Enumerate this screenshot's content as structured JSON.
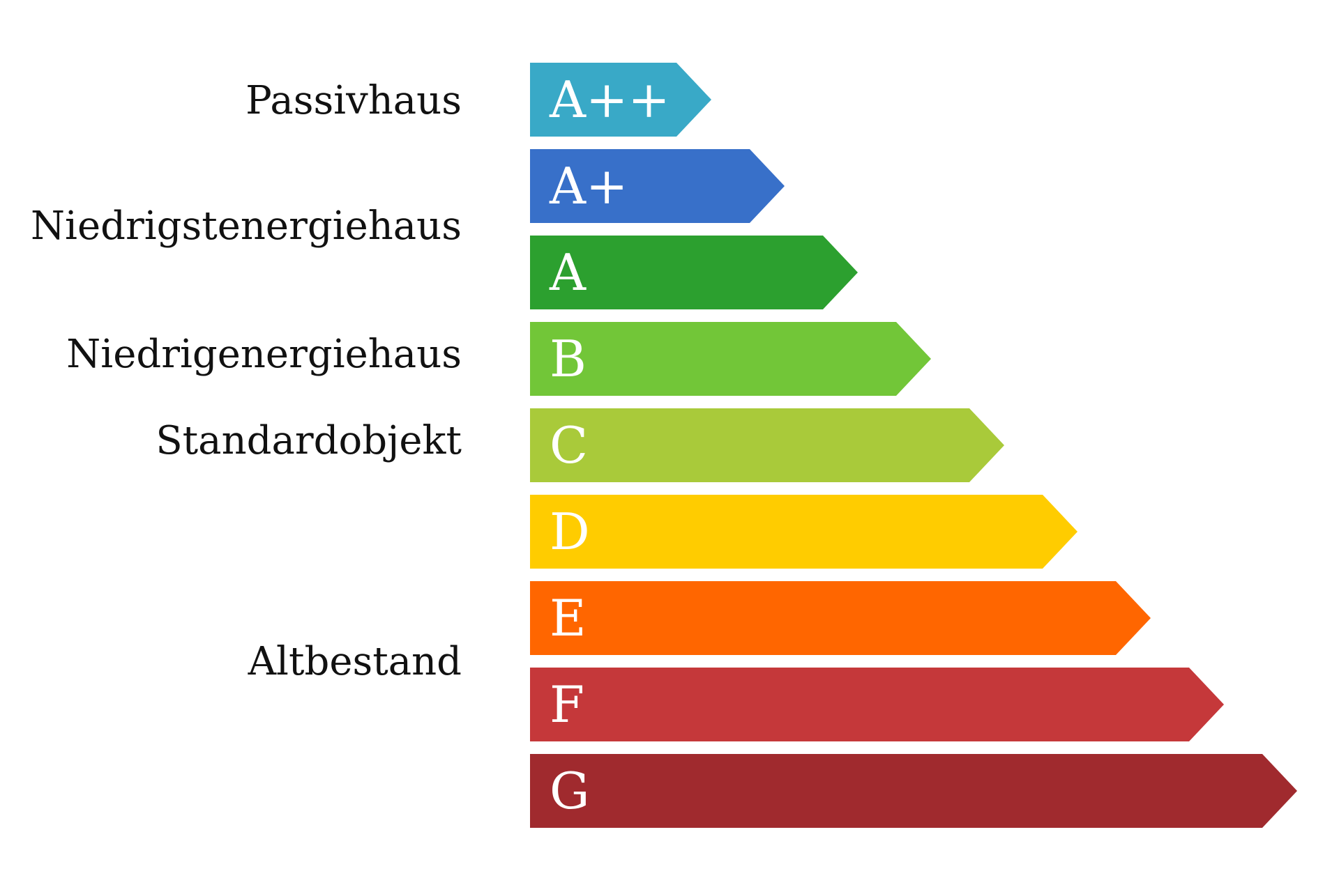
{
  "energy_classes": [
    {
      "label": "A++",
      "color": "#39A9C7"
    },
    {
      "label": "A+",
      "color": "#3870C9"
    },
    {
      "label": "A",
      "color": "#2CA02F"
    },
    {
      "label": "B",
      "color": "#72C638"
    },
    {
      "label": "C",
      "color": "#A9CA3A"
    },
    {
      "label": "D",
      "color": "#FFCC00"
    },
    {
      "label": "E",
      "color": "#FF6600"
    },
    {
      "label": "F",
      "color": "#C5383A"
    },
    {
      "label": "G",
      "color": "#A02A2E"
    }
  ],
  "building_categories": [
    {
      "label": "Passivhaus"
    },
    {
      "label": "Niedrigstenergiehaus"
    },
    {
      "label": "Niedrigenergiehaus"
    },
    {
      "label": "Standardobjekt"
    },
    {
      "label": "Altbestand"
    }
  ]
}
